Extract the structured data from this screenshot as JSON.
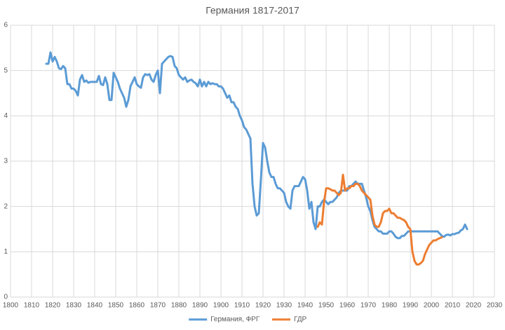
{
  "chart_data": {
    "type": "line",
    "title": "Германия 1817-2017",
    "x": [
      1817,
      1818,
      1819,
      1820,
      1821,
      1822,
      1823,
      1824,
      1825,
      1826,
      1827,
      1828,
      1829,
      1830,
      1831,
      1832,
      1833,
      1834,
      1835,
      1836,
      1837,
      1838,
      1839,
      1840,
      1841,
      1842,
      1843,
      1844,
      1845,
      1846,
      1847,
      1848,
      1849,
      1850,
      1851,
      1852,
      1853,
      1854,
      1855,
      1856,
      1857,
      1858,
      1859,
      1860,
      1861,
      1862,
      1863,
      1864,
      1865,
      1866,
      1867,
      1868,
      1869,
      1870,
      1871,
      1872,
      1873,
      1874,
      1875,
      1876,
      1877,
      1878,
      1879,
      1880,
      1881,
      1882,
      1883,
      1884,
      1885,
      1886,
      1887,
      1888,
      1889,
      1890,
      1891,
      1892,
      1893,
      1894,
      1895,
      1896,
      1897,
      1898,
      1899,
      1900,
      1901,
      1902,
      1903,
      1904,
      1905,
      1906,
      1907,
      1908,
      1909,
      1910,
      1911,
      1912,
      1913,
      1914,
      1915,
      1916,
      1917,
      1918,
      1919,
      1920,
      1921,
      1922,
      1923,
      1924,
      1925,
      1926,
      1927,
      1928,
      1929,
      1930,
      1931,
      1932,
      1933,
      1934,
      1935,
      1936,
      1937,
      1938,
      1939,
      1940,
      1941,
      1942,
      1943,
      1944,
      1945,
      1946,
      1947,
      1948,
      1949,
      1950,
      1951,
      1952,
      1953,
      1954,
      1955,
      1956,
      1957,
      1958,
      1959,
      1960,
      1961,
      1962,
      1963,
      1964,
      1965,
      1966,
      1967,
      1968,
      1969,
      1970,
      1971,
      1972,
      1973,
      1974,
      1975,
      1976,
      1977,
      1978,
      1979,
      1980,
      1981,
      1982,
      1983,
      1984,
      1985,
      1986,
      1987,
      1988,
      1989,
      1990,
      1991,
      1992,
      1993,
      1994,
      1995,
      1996,
      1997,
      1998,
      1999,
      2000,
      2001,
      2002,
      2003,
      2004,
      2005,
      2006,
      2007,
      2008,
      2009,
      2010,
      2011,
      2012,
      2013,
      2014,
      2015,
      2016,
      2017
    ],
    "series": [
      {
        "name": "Германия, ФРГ",
        "color": "#5b9bd5",
        "values": [
          5.15,
          5.15,
          5.4,
          5.2,
          5.3,
          5.2,
          5.05,
          5.03,
          5.1,
          5.05,
          4.7,
          4.7,
          4.6,
          4.6,
          4.55,
          4.45,
          4.8,
          4.9,
          4.75,
          4.78,
          4.73,
          4.75,
          4.75,
          4.75,
          4.75,
          4.88,
          4.7,
          4.68,
          4.85,
          4.7,
          4.35,
          4.35,
          4.95,
          4.85,
          4.75,
          4.6,
          4.5,
          4.4,
          4.2,
          4.35,
          4.65,
          4.75,
          4.85,
          4.7,
          4.65,
          4.62,
          4.85,
          4.92,
          4.9,
          4.92,
          4.8,
          4.75,
          4.9,
          5.0,
          4.5,
          5.15,
          5.2,
          5.25,
          5.3,
          5.32,
          5.3,
          5.1,
          5.05,
          4.9,
          4.85,
          4.8,
          4.85,
          4.75,
          4.78,
          4.8,
          4.75,
          4.72,
          4.65,
          4.8,
          4.65,
          4.75,
          4.65,
          4.75,
          4.7,
          4.72,
          4.7,
          4.7,
          4.65,
          4.65,
          4.6,
          4.5,
          4.4,
          4.45,
          4.3,
          4.3,
          4.2,
          4.15,
          4.0,
          3.9,
          3.75,
          3.7,
          3.6,
          3.5,
          2.5,
          2.0,
          1.8,
          1.85,
          2.6,
          3.4,
          3.3,
          3.0,
          2.75,
          2.65,
          2.65,
          2.5,
          2.4,
          2.4,
          2.35,
          2.3,
          2.1,
          2.0,
          1.95,
          2.35,
          2.45,
          2.45,
          2.45,
          2.55,
          2.65,
          2.6,
          2.35,
          1.95,
          2.1,
          1.65,
          1.5,
          2.0,
          2.0,
          2.1,
          2.15,
          2.1,
          2.05,
          2.1,
          2.1,
          2.15,
          2.2,
          2.3,
          2.35,
          2.35,
          2.35,
          2.35,
          2.45,
          2.45,
          2.5,
          2.55,
          2.5,
          2.5,
          2.5,
          2.35,
          2.2,
          2.0,
          1.9,
          1.7,
          1.55,
          1.5,
          1.45,
          1.45,
          1.4,
          1.4,
          1.4,
          1.45,
          1.45,
          1.4,
          1.33,
          1.3,
          1.3,
          1.35,
          1.35,
          1.4,
          1.45,
          1.45,
          1.45,
          1.45,
          1.45,
          1.45,
          1.45,
          1.45,
          1.45,
          1.45,
          1.45,
          1.45,
          1.45,
          1.45,
          1.45,
          1.4,
          1.35,
          1.33,
          1.37,
          1.38,
          1.36,
          1.39,
          1.39,
          1.41,
          1.42,
          1.47,
          1.5,
          1.6,
          1.5
        ]
      },
      {
        "name": "ГДР",
        "color": "#ed7d31",
        "values": [
          null,
          null,
          null,
          null,
          null,
          null,
          null,
          null,
          null,
          null,
          null,
          null,
          null,
          null,
          null,
          null,
          null,
          null,
          null,
          null,
          null,
          null,
          null,
          null,
          null,
          null,
          null,
          null,
          null,
          null,
          null,
          null,
          null,
          null,
          null,
          null,
          null,
          null,
          null,
          null,
          null,
          null,
          null,
          null,
          null,
          null,
          null,
          null,
          null,
          null,
          null,
          null,
          null,
          null,
          null,
          null,
          null,
          null,
          null,
          null,
          null,
          null,
          null,
          null,
          null,
          null,
          null,
          null,
          null,
          null,
          null,
          null,
          null,
          null,
          null,
          null,
          null,
          null,
          null,
          null,
          null,
          null,
          null,
          null,
          null,
          null,
          null,
          null,
          null,
          null,
          null,
          null,
          null,
          null,
          null,
          null,
          null,
          null,
          null,
          null,
          null,
          null,
          null,
          null,
          null,
          null,
          null,
          null,
          null,
          null,
          null,
          null,
          null,
          null,
          null,
          null,
          null,
          null,
          null,
          null,
          null,
          null,
          null,
          null,
          null,
          null,
          null,
          null,
          null,
          1.55,
          1.65,
          1.6,
          2.1,
          2.4,
          2.4,
          2.38,
          2.35,
          2.35,
          2.3,
          2.25,
          2.3,
          2.7,
          2.35,
          2.4,
          2.4,
          2.45,
          2.45,
          2.5,
          2.5,
          2.45,
          2.35,
          2.3,
          2.25,
          2.2,
          2.15,
          1.8,
          1.6,
          1.55,
          1.55,
          1.65,
          1.85,
          1.9,
          1.9,
          1.95,
          1.85,
          1.85,
          1.8,
          1.75,
          1.75,
          1.72,
          1.7,
          1.65,
          1.55,
          1.5,
          1.0,
          0.8,
          0.72,
          0.72,
          0.75,
          0.8,
          0.95,
          1.05,
          1.15,
          1.2,
          1.25,
          1.25,
          1.28,
          1.3,
          1.32,
          null,
          null,
          null,
          null,
          null,
          null,
          null,
          null,
          null,
          null,
          null,
          null
        ]
      }
    ],
    "xlim": [
      1800,
      2030
    ],
    "xticks": [
      1800,
      1810,
      1820,
      1830,
      1840,
      1850,
      1860,
      1870,
      1880,
      1890,
      1900,
      1910,
      1920,
      1930,
      1940,
      1950,
      1960,
      1970,
      1980,
      1990,
      2000,
      2010,
      2020,
      2030
    ],
    "ylim": [
      0,
      6
    ],
    "yticks": [
      0,
      1,
      2,
      3,
      4,
      5,
      6
    ],
    "grid": true,
    "legend": "bottom"
  }
}
